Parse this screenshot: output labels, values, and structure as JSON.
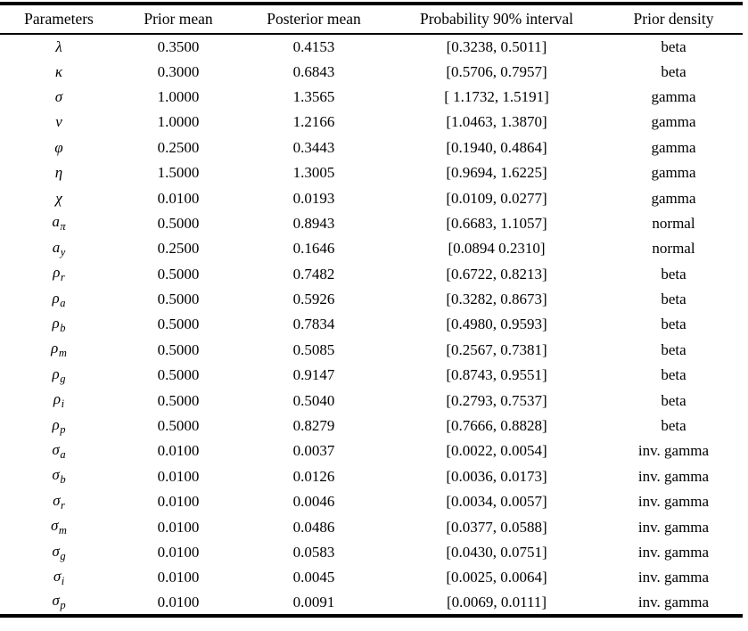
{
  "table": {
    "headers": [
      "Parameters",
      "Prior mean",
      "Posterior mean",
      "Probability 90% interval",
      "Prior density"
    ],
    "rows": [
      {
        "param": "λ",
        "sub": "",
        "prior_mean": "0.3500",
        "posterior_mean": "0.4153",
        "interval": "[0.3238, 0.5011]",
        "density": "beta"
      },
      {
        "param": "κ",
        "sub": "",
        "prior_mean": "0.3000",
        "posterior_mean": "0.6843",
        "interval": "[0.5706, 0.7957]",
        "density": "beta"
      },
      {
        "param": "σ",
        "sub": "",
        "prior_mean": "1.0000",
        "posterior_mean": "1.3565",
        "interval": "[ 1.1732, 1.5191]",
        "density": "gamma"
      },
      {
        "param": "ν",
        "sub": "",
        "prior_mean": "1.0000",
        "posterior_mean": "1.2166",
        "interval": "[1.0463, 1.3870]",
        "density": "gamma"
      },
      {
        "param": "φ",
        "sub": "",
        "prior_mean": "0.2500",
        "posterior_mean": "0.3443",
        "interval": "[0.1940, 0.4864]",
        "density": "gamma"
      },
      {
        "param": "η",
        "sub": "",
        "prior_mean": "1.5000",
        "posterior_mean": "1.3005",
        "interval": "[0.9694, 1.6225]",
        "density": "gamma"
      },
      {
        "param": "χ",
        "sub": "",
        "prior_mean": "0.0100",
        "posterior_mean": "0.0193",
        "interval": "[0.0109, 0.0277]",
        "density": "gamma"
      },
      {
        "param": "a",
        "sub": "π",
        "prior_mean": "0.5000",
        "posterior_mean": "0.8943",
        "interval": "[0.6683, 1.1057]",
        "density": "normal"
      },
      {
        "param": "a",
        "sub": "y",
        "prior_mean": "0.2500",
        "posterior_mean": "0.1646",
        "interval": "[0.0894 0.2310]",
        "density": "normal"
      },
      {
        "param": "ρ",
        "sub": "r",
        "prior_mean": "0.5000",
        "posterior_mean": "0.7482",
        "interval": "[0.6722, 0.8213]",
        "density": "beta"
      },
      {
        "param": "ρ",
        "sub": "a",
        "prior_mean": "0.5000",
        "posterior_mean": "0.5926",
        "interval": "[0.3282, 0.8673]",
        "density": "beta"
      },
      {
        "param": "ρ",
        "sub": "b",
        "prior_mean": "0.5000",
        "posterior_mean": "0.7834",
        "interval": "[0.4980, 0.9593]",
        "density": "beta"
      },
      {
        "param": "ρ",
        "sub": "m",
        "prior_mean": "0.5000",
        "posterior_mean": "0.5085",
        "interval": "[0.2567, 0.7381]",
        "density": "beta"
      },
      {
        "param": "ρ",
        "sub": "g",
        "prior_mean": "0.5000",
        "posterior_mean": "0.9147",
        "interval": "[0.8743, 0.9551]",
        "density": "beta"
      },
      {
        "param": "ρ",
        "sub": "i",
        "prior_mean": "0.5000",
        "posterior_mean": "0.5040",
        "interval": "[0.2793, 0.7537]",
        "density": "beta"
      },
      {
        "param": "ρ",
        "sub": "p",
        "prior_mean": "0.5000",
        "posterior_mean": "0.8279",
        "interval": "[0.7666, 0.8828]",
        "density": "beta"
      },
      {
        "param": "σ",
        "sub": "a",
        "prior_mean": "0.0100",
        "posterior_mean": "0.0037",
        "interval": "[0.0022, 0.0054]",
        "density": "inv. gamma"
      },
      {
        "param": "σ",
        "sub": "b",
        "prior_mean": "0.0100",
        "posterior_mean": "0.0126",
        "interval": "[0.0036, 0.0173]",
        "density": "inv. gamma"
      },
      {
        "param": "σ",
        "sub": "r",
        "prior_mean": "0.0100",
        "posterior_mean": "0.0046",
        "interval": "[0.0034, 0.0057]",
        "density": "inv. gamma"
      },
      {
        "param": "σ",
        "sub": "m",
        "prior_mean": "0.0100",
        "posterior_mean": "0.0486",
        "interval": "[0.0377, 0.0588]",
        "density": "inv. gamma"
      },
      {
        "param": "σ",
        "sub": "g",
        "prior_mean": "0.0100",
        "posterior_mean": "0.0583",
        "interval": "[0.0430, 0.0751]",
        "density": "inv. gamma"
      },
      {
        "param": "σ",
        "sub": "i",
        "prior_mean": "0.0100",
        "posterior_mean": "0.0045",
        "interval": "[0.0025, 0.0064]",
        "density": "inv. gamma"
      },
      {
        "param": "σ",
        "sub": "p",
        "prior_mean": "0.0100",
        "posterior_mean": "0.0091",
        "interval": "[0.0069, 0.0111]",
        "density": "inv. gamma"
      }
    ]
  }
}
